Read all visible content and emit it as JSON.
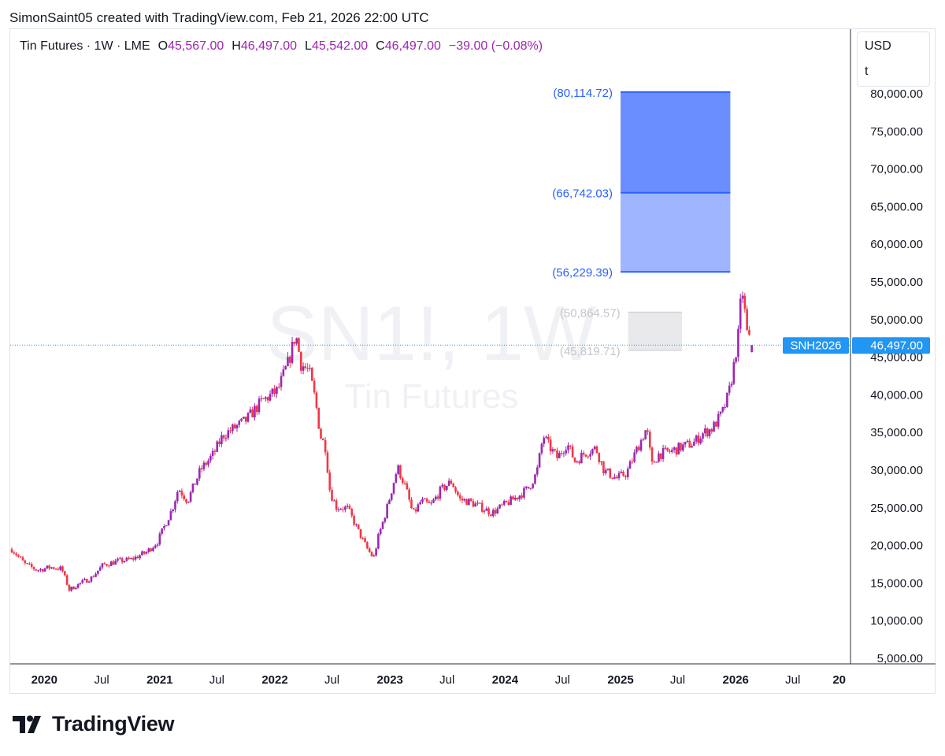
{
  "credit": "SimonSaint05 created with TradingView.com, Feb 21, 2026 22:00 UTC",
  "legend": {
    "symbol": "Tin Futures · 1W · LME",
    "open_label": "O",
    "open": "45,567.00",
    "high_label": "H",
    "high": "46,497.00",
    "low_label": "L",
    "low": "45,542.00",
    "close_label": "C",
    "close": "46,497.00",
    "change": "−39.00 (−0.08%)"
  },
  "unit_box": {
    "currency": "USD",
    "unit": "t"
  },
  "watermark": {
    "ticker": "SN1!, 1W",
    "name": "Tin Futures"
  },
  "brand": {
    "name": "TradingView"
  },
  "colors": {
    "up": "#9c27b0",
    "down": "#f23645",
    "accent": "#2962ff",
    "target_dark": "#6a8eff",
    "target_light": "#a0b5ff",
    "grey_zone": "#e9e9eb",
    "last_price_bg": "#2196f3"
  },
  "chart_data": {
    "type": "candlestick",
    "title": "Tin Futures · 1W · LME",
    "xlabel": "",
    "ylabel": "",
    "x_ticks": [
      "2020",
      "Jul",
      "2021",
      "Jul",
      "2022",
      "Jul",
      "2023",
      "Jul",
      "2024",
      "Jul",
      "2025",
      "Jul",
      "2026",
      "Jul",
      "20"
    ],
    "y_ticks": [
      "80,000.00",
      "75,000.00",
      "70,000.00",
      "65,000.00",
      "60,000.00",
      "55,000.00",
      "50,000.00",
      "45,000.00",
      "40,000.00",
      "35,000.00",
      "30,000.00",
      "25,000.00",
      "20,000.00",
      "15,000.00",
      "10,000.00",
      "5,000.00"
    ],
    "ylim": [
      5000,
      83200
    ],
    "xlim": [
      "2019-09-15",
      "2026-12-31"
    ],
    "last_price": {
      "label": "SNH2026",
      "value": 46497,
      "text": "46,497.00"
    },
    "target_levels": [
      {
        "value": 80114.72,
        "label": "(80,114.72)"
      },
      {
        "value": 66742.03,
        "label": "(66,742.03)"
      },
      {
        "value": 56229.39,
        "label": "(56,229.39)"
      }
    ],
    "grey_zone": [
      {
        "value": 50864.57,
        "label": "(50,864.57)"
      },
      {
        "value": 45819.71,
        "label": "(45,819.71)"
      }
    ],
    "target_zone_dates": [
      "2025-01-01",
      "2025-12-15"
    ],
    "grey_zone_dates": [
      "2025-01-25",
      "2025-07-15"
    ],
    "close_path": [
      [
        "2019-09-20",
        19400
      ],
      [
        "2019-11-01",
        17400
      ],
      [
        "2019-12-10",
        16600
      ],
      [
        "2020-01-20",
        17000
      ],
      [
        "2020-02-25",
        16800
      ],
      [
        "2020-03-20",
        14000
      ],
      [
        "2020-04-25",
        14900
      ],
      [
        "2020-05-30",
        15600
      ],
      [
        "2020-07-05",
        17300
      ],
      [
        "2020-08-20",
        17800
      ],
      [
        "2020-10-01",
        18000
      ],
      [
        "2020-11-20",
        19000
      ],
      [
        "2020-12-25",
        20400
      ],
      [
        "2021-02-10",
        24800
      ],
      [
        "2021-03-01",
        27500
      ],
      [
        "2021-03-30",
        25800
      ],
      [
        "2021-05-10",
        29900
      ],
      [
        "2021-06-20",
        32000
      ],
      [
        "2021-07-20",
        34500
      ],
      [
        "2021-08-25",
        35500
      ],
      [
        "2021-10-01",
        36500
      ],
      [
        "2021-11-20",
        39000
      ],
      [
        "2022-01-10",
        40500
      ],
      [
        "2022-02-15",
        44500
      ],
      [
        "2022-03-08",
        48000
      ],
      [
        "2022-03-25",
        44000
      ],
      [
        "2022-04-20",
        43000
      ],
      [
        "2022-05-10",
        39000
      ],
      [
        "2022-05-25",
        34500
      ],
      [
        "2022-06-10",
        33000
      ],
      [
        "2022-06-25",
        27000
      ],
      [
        "2022-07-15",
        25000
      ],
      [
        "2022-08-20",
        24800
      ],
      [
        "2022-09-20",
        22000
      ],
      [
        "2022-10-20",
        19500
      ],
      [
        "2022-11-10",
        18200
      ],
      [
        "2022-11-25",
        21000
      ],
      [
        "2022-12-20",
        24500
      ],
      [
        "2023-01-25",
        30300
      ],
      [
        "2023-02-20",
        27500
      ],
      [
        "2023-03-15",
        24000
      ],
      [
        "2023-04-10",
        25800
      ],
      [
        "2023-05-10",
        25200
      ],
      [
        "2023-06-10",
        27200
      ],
      [
        "2023-07-15",
        28400
      ],
      [
        "2023-08-10",
        26000
      ],
      [
        "2023-09-10",
        25700
      ],
      [
        "2023-10-15",
        25000
      ],
      [
        "2023-11-20",
        24200
      ],
      [
        "2023-12-30",
        25300
      ],
      [
        "2024-02-10",
        26400
      ],
      [
        "2024-03-15",
        27500
      ],
      [
        "2024-04-10",
        29500
      ],
      [
        "2024-05-01",
        34500
      ],
      [
        "2024-05-20",
        33000
      ],
      [
        "2024-06-15",
        31500
      ],
      [
        "2024-07-15",
        33500
      ],
      [
        "2024-08-10",
        31000
      ],
      [
        "2024-09-10",
        32200
      ],
      [
        "2024-10-15",
        32800
      ],
      [
        "2024-11-10",
        29800
      ],
      [
        "2024-12-20",
        28800
      ],
      [
        "2025-01-20",
        29500
      ],
      [
        "2025-02-20",
        32500
      ],
      [
        "2025-03-25",
        35500
      ],
      [
        "2025-04-10",
        30500
      ],
      [
        "2025-05-01",
        32000
      ],
      [
        "2025-06-10",
        32400
      ],
      [
        "2025-07-15",
        33000
      ],
      [
        "2025-08-20",
        33500
      ],
      [
        "2025-09-20",
        34800
      ],
      [
        "2025-10-20",
        35500
      ],
      [
        "2025-11-20",
        37500
      ],
      [
        "2025-12-10",
        40000
      ],
      [
        "2025-12-25",
        43500
      ],
      [
        "2026-01-10",
        48000
      ],
      [
        "2026-01-20",
        54200
      ],
      [
        "2026-01-27",
        52500
      ],
      [
        "2026-02-03",
        48500
      ],
      [
        "2026-02-10",
        47500
      ],
      [
        "2026-02-17",
        46536
      ],
      [
        "2026-02-21",
        46497
      ]
    ],
    "last_candle": {
      "date": "2026-02-21",
      "open": 45567,
      "high": 46497,
      "low": 45542,
      "close": 46497
    }
  }
}
